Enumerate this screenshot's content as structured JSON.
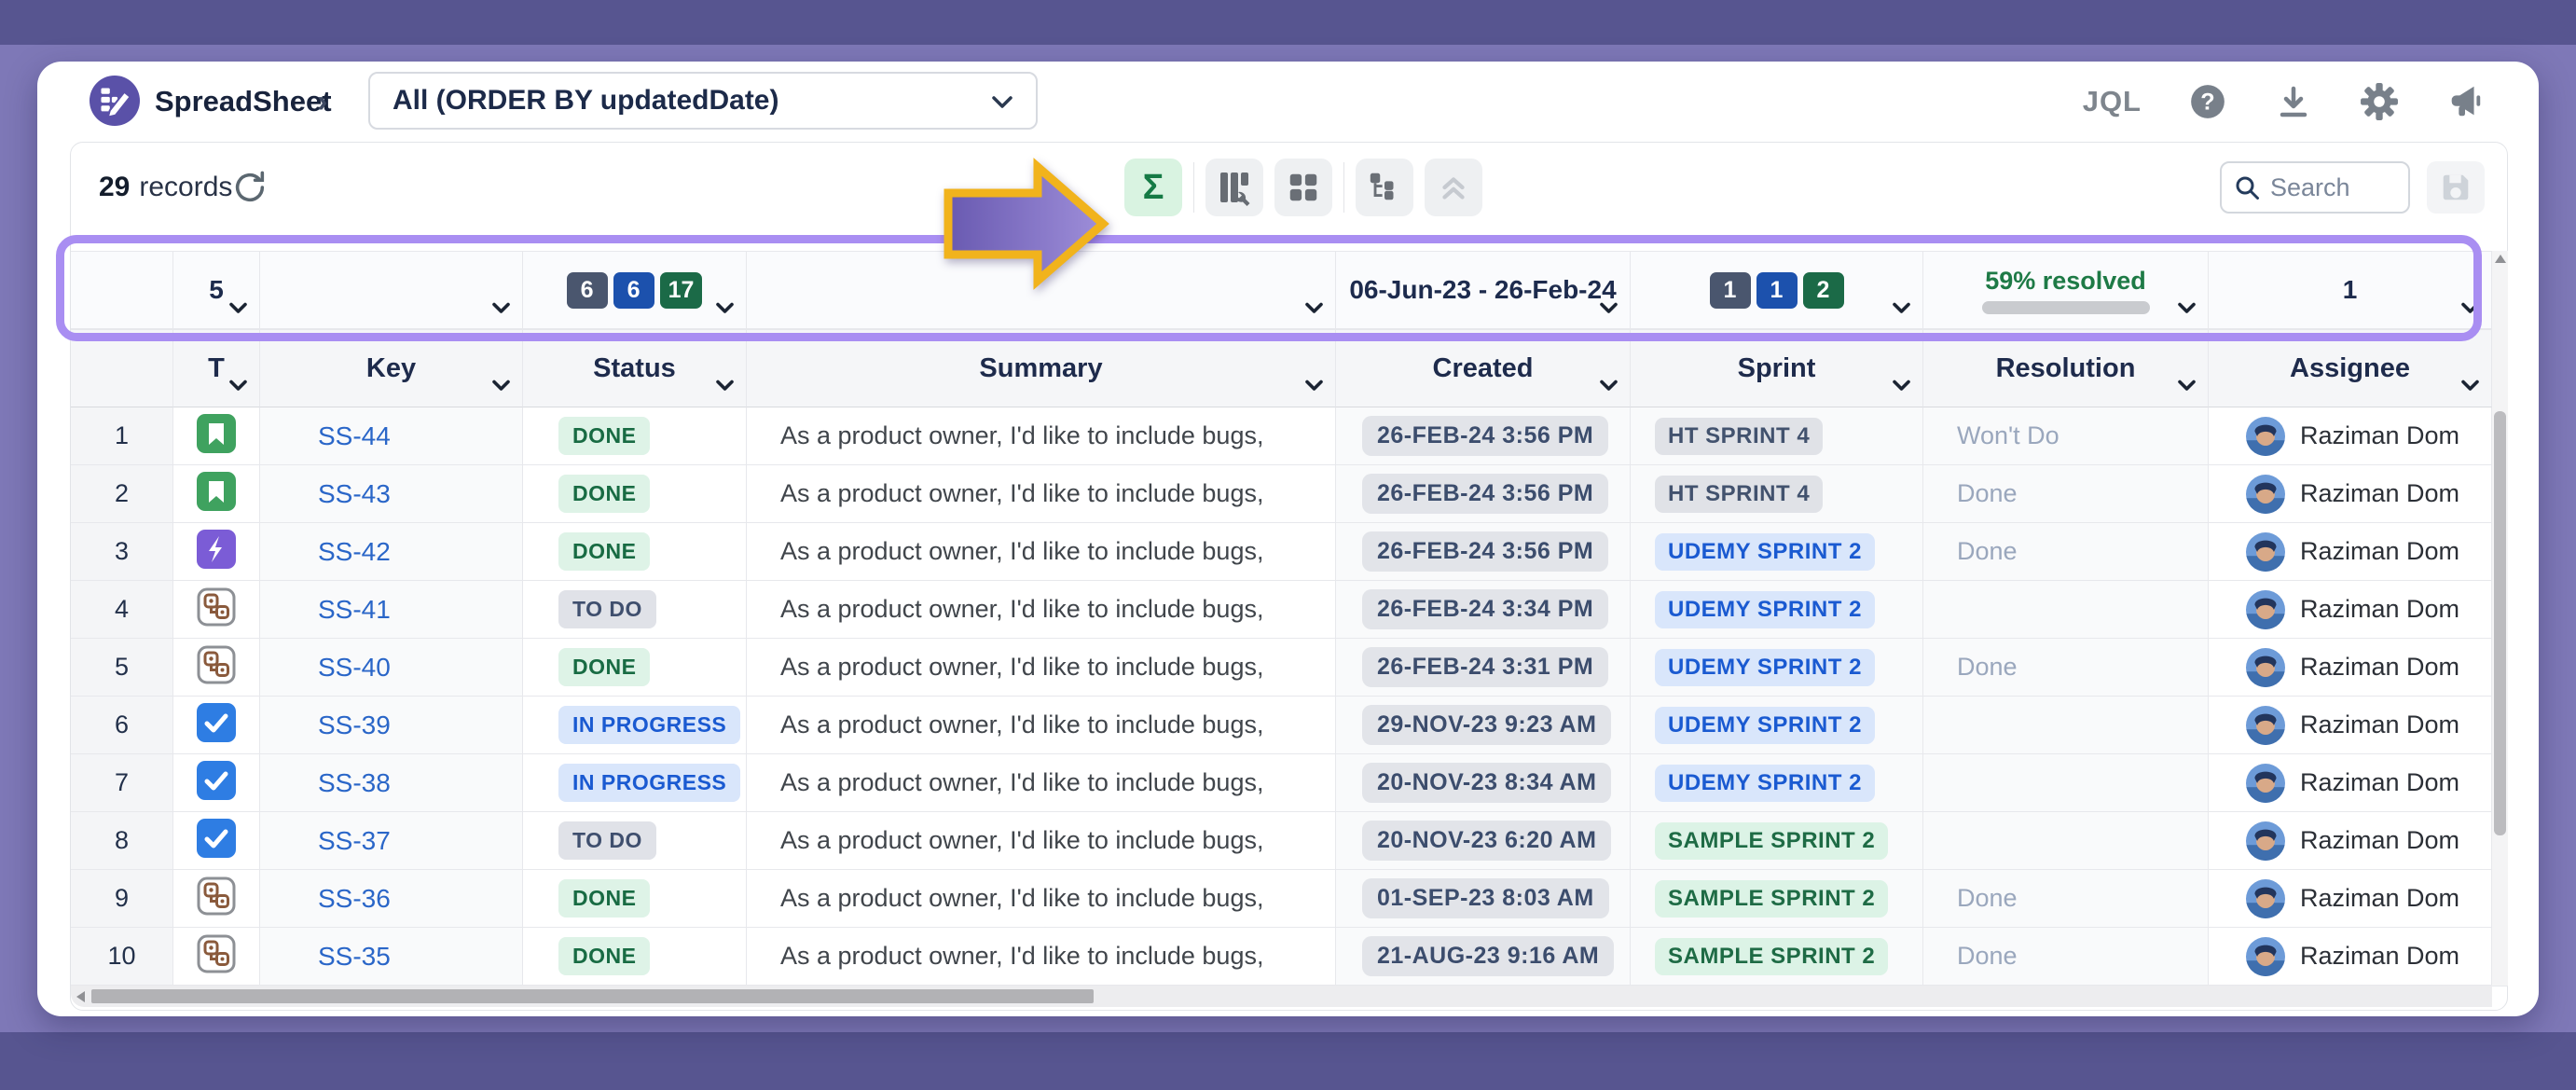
{
  "header": {
    "app_title": "SpreadSheet",
    "breadcrumb_chevron": "›",
    "view_value": "All (ORDER BY updatedDate)",
    "jql_label": "JQL"
  },
  "toolbar": {
    "record_count": "29",
    "records_label": "records",
    "sigma_label": "Σ",
    "search_placeholder": "Search"
  },
  "aggregation": {
    "type_count": "5",
    "status_badges": [
      {
        "value": "6",
        "color": "#4a566e"
      },
      {
        "value": "6",
        "color": "#1c51ad"
      },
      {
        "value": "17",
        "color": "#1b6a47"
      }
    ],
    "created_range": "06-Jun-23 - 26-Feb-24",
    "sprint_badges": [
      {
        "value": "1",
        "color": "#4a566e"
      },
      {
        "value": "1",
        "color": "#1c51ad"
      },
      {
        "value": "2",
        "color": "#1b6a47"
      }
    ],
    "resolution_summary": "59% resolved",
    "resolution_percent": 59,
    "assignee_count": "1"
  },
  "colors": {
    "highlight_ring": "#a98ef2",
    "arrow_border": "#f1b31c",
    "sigma_active_bg": "#d9f3e1"
  },
  "table": {
    "columns": [
      "",
      "T",
      "Key",
      "Status",
      "Summary",
      "Created",
      "Sprint",
      "Resolution",
      "Assignee"
    ],
    "rows": [
      {
        "num": "1",
        "type_icon": "story-icon",
        "key": "SS-44",
        "status": "DONE",
        "summary": "As a product owner, I'd like to include bugs,",
        "created": "26-FEB-24 3:56 PM",
        "sprint": "HT SPRINT 4",
        "sprint_color": "gray",
        "resolution": "Won't Do",
        "assignee": "Raziman Dom"
      },
      {
        "num": "2",
        "type_icon": "story-icon",
        "key": "SS-43",
        "status": "DONE",
        "summary": "As a product owner, I'd like to include bugs,",
        "created": "26-FEB-24 3:56 PM",
        "sprint": "HT SPRINT 4",
        "sprint_color": "gray",
        "resolution": "Done",
        "assignee": "Raziman Dom"
      },
      {
        "num": "3",
        "type_icon": "epic-icon",
        "key": "SS-42",
        "status": "DONE",
        "summary": "As a product owner, I'd like to include bugs,",
        "created": "26-FEB-24 3:56 PM",
        "sprint": "UDEMY SPRINT 2",
        "sprint_color": "blue",
        "resolution": "Done",
        "assignee": "Raziman Dom"
      },
      {
        "num": "4",
        "type_icon": "subtask-icon",
        "key": "SS-41",
        "status": "TO DO",
        "summary": "As a product owner, I'd like to include bugs,",
        "created": "26-FEB-24 3:34 PM",
        "sprint": "UDEMY SPRINT 2",
        "sprint_color": "blue",
        "resolution": "",
        "assignee": "Raziman Dom"
      },
      {
        "num": "5",
        "type_icon": "subtask-icon",
        "key": "SS-40",
        "status": "DONE",
        "summary": "As a product owner, I'd like to include bugs,",
        "created": "26-FEB-24 3:31 PM",
        "sprint": "UDEMY SPRINT 2",
        "sprint_color": "blue",
        "resolution": "Done",
        "assignee": "Raziman Dom"
      },
      {
        "num": "6",
        "type_icon": "task-icon",
        "key": "SS-39",
        "status": "IN PROGRESS",
        "summary": "As a product owner, I'd like to include bugs,",
        "created": "29-NOV-23 9:23 AM",
        "sprint": "UDEMY SPRINT 2",
        "sprint_color": "blue",
        "resolution": "",
        "assignee": "Raziman Dom"
      },
      {
        "num": "7",
        "type_icon": "task-icon",
        "key": "SS-38",
        "status": "IN PROGRESS",
        "summary": "As a product owner, I'd like to include bugs,",
        "created": "20-NOV-23 8:34 AM",
        "sprint": "UDEMY SPRINT 2",
        "sprint_color": "blue",
        "resolution": "",
        "assignee": "Raziman Dom"
      },
      {
        "num": "8",
        "type_icon": "task-icon",
        "key": "SS-37",
        "status": "TO DO",
        "summary": "As a product owner, I'd like to include bugs,",
        "created": "20-NOV-23 6:20 AM",
        "sprint": "SAMPLE SPRINT 2",
        "sprint_color": "green",
        "resolution": "",
        "assignee": "Raziman Dom"
      },
      {
        "num": "9",
        "type_icon": "subtask-icon",
        "key": "SS-36",
        "status": "DONE",
        "summary": "As a product owner, I'd like to include bugs,",
        "created": "01-SEP-23 8:03 AM",
        "sprint": "SAMPLE SPRINT 2",
        "sprint_color": "green",
        "resolution": "Done",
        "assignee": "Raziman Dom"
      },
      {
        "num": "10",
        "type_icon": "subtask-icon",
        "key": "SS-35",
        "status": "DONE",
        "summary": "As a product owner, I'd like to include bugs,",
        "created": "21-AUG-23 9:16 AM",
        "sprint": "SAMPLE SPRINT 2",
        "sprint_color": "green",
        "resolution": "Done",
        "assignee": "Raziman Dom"
      }
    ]
  }
}
